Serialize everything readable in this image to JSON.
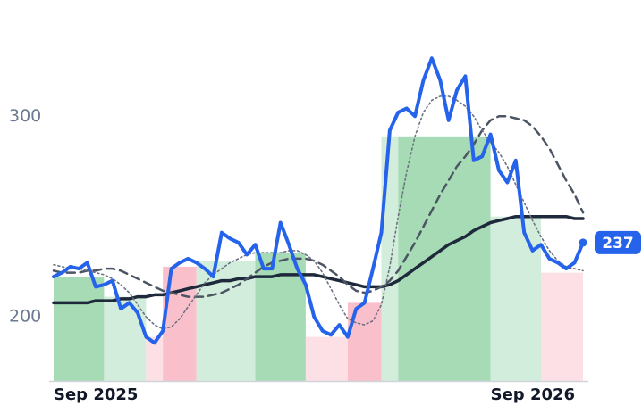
{
  "chart_data": {
    "type": "line",
    "categories": [
      "Sep 2025",
      null,
      null,
      null,
      null,
      null,
      null,
      null,
      null,
      null,
      null,
      null,
      null,
      null,
      null,
      null,
      null,
      null,
      null,
      null,
      null,
      null,
      null,
      null,
      null,
      null,
      null,
      null,
      null,
      null,
      null,
      null,
      null,
      null,
      null,
      null,
      null,
      null,
      null,
      null,
      null,
      null,
      null,
      null,
      null,
      null,
      null,
      null,
      null,
      null,
      null,
      null,
      "Sep 2026",
      null,
      null,
      null,
      null,
      null,
      null,
      null,
      null,
      null,
      null,
      null
    ],
    "series": [
      {
        "color": "#2563eb",
        "dash": "solid",
        "values": [
          220,
          222,
          225,
          224,
          227,
          215,
          216,
          218,
          204,
          207,
          202,
          190,
          187,
          193,
          224,
          227,
          229,
          227,
          224,
          220,
          242,
          239,
          237,
          231,
          236,
          224,
          224,
          247,
          236,
          224,
          216,
          200,
          193,
          191,
          196,
          190,
          204,
          207,
          224,
          242,
          293,
          302,
          304,
          300,
          318,
          329,
          318,
          298,
          313,
          320,
          278,
          280,
          291,
          273,
          267,
          278,
          242,
          233,
          236,
          229,
          227,
          224,
          227,
          237
        ]
      },
      {
        "color": "#1e293b",
        "dash": "solid",
        "values": [
          207,
          207,
          207,
          207,
          207,
          208,
          208,
          208,
          209,
          209,
          210,
          210,
          211,
          211,
          212,
          213,
          214,
          215,
          216,
          217,
          218,
          218,
          219,
          219,
          220,
          220,
          220,
          221,
          221,
          221,
          221,
          221,
          220,
          219,
          218,
          217,
          216,
          215,
          215,
          215,
          216,
          218,
          221,
          224,
          227,
          230,
          233,
          236,
          238,
          240,
          243,
          245,
          247,
          248,
          249,
          250,
          250,
          250,
          250,
          250,
          250,
          250,
          249,
          249
        ]
      },
      {
        "color": "#4b5563",
        "dash": "dashed",
        "values": [
          223,
          222,
          222,
          222,
          223,
          223,
          224,
          224,
          223,
          221,
          219,
          217,
          215,
          213,
          212,
          211,
          210,
          210,
          210,
          211,
          212,
          214,
          216,
          219,
          222,
          225,
          227,
          228,
          229,
          229,
          229,
          228,
          226,
          223,
          220,
          216,
          213,
          212,
          213,
          215,
          218,
          223,
          230,
          237,
          245,
          253,
          261,
          268,
          275,
          280,
          286,
          293,
          298,
          300,
          300,
          299,
          298,
          295,
          290,
          284,
          276,
          268,
          261,
          252
        ]
      },
      {
        "color": "#6b7280",
        "dash": "dotted",
        "values": [
          226,
          225,
          224,
          224,
          223,
          222,
          221,
          219,
          216,
          212,
          206,
          200,
          196,
          194,
          195,
          199,
          205,
          211,
          217,
          221,
          224,
          227,
          229,
          231,
          232,
          232,
          232,
          232,
          233,
          233,
          231,
          228,
          222,
          214,
          206,
          199,
          197,
          196,
          198,
          206,
          225,
          250,
          272,
          290,
          302,
          308,
          310,
          310,
          308,
          305,
          300,
          293,
          287,
          282,
          275,
          266,
          257,
          248,
          240,
          233,
          228,
          225,
          224,
          223
        ]
      }
    ],
    "periods": [
      {
        "from": 0,
        "to": 6,
        "value": 220,
        "color": "#a6dbb5"
      },
      {
        "from": 6,
        "to": 11,
        "value": 210,
        "color": "#d3eddc"
      },
      {
        "from": 11,
        "to": 13,
        "value": 190,
        "color": "#fde0e6"
      },
      {
        "from": 13,
        "to": 17,
        "value": 225,
        "color": "#f9c0cc"
      },
      {
        "from": 17,
        "to": 24,
        "value": 228,
        "color": "#d3eddc"
      },
      {
        "from": 24,
        "to": 30,
        "value": 232,
        "color": "#a6dbb5"
      },
      {
        "from": 30,
        "to": 35,
        "value": 190,
        "color": "#fde0e6"
      },
      {
        "from": 35,
        "to": 39,
        "value": 207,
        "color": "#f9c0cc"
      },
      {
        "from": 39,
        "to": 41,
        "value": 290,
        "color": "#d3eddc"
      },
      {
        "from": 41,
        "to": 52,
        "value": 290,
        "color": "#a6dbb5"
      },
      {
        "from": 52,
        "to": 58,
        "value": 250,
        "color": "#d3eddc"
      },
      {
        "from": 58,
        "to": 63,
        "value": 222,
        "color": "#fde0e6"
      }
    ],
    "ylim": [
      168,
      358
    ],
    "yticks": [
      200,
      300
    ],
    "grid": false
  }
}
